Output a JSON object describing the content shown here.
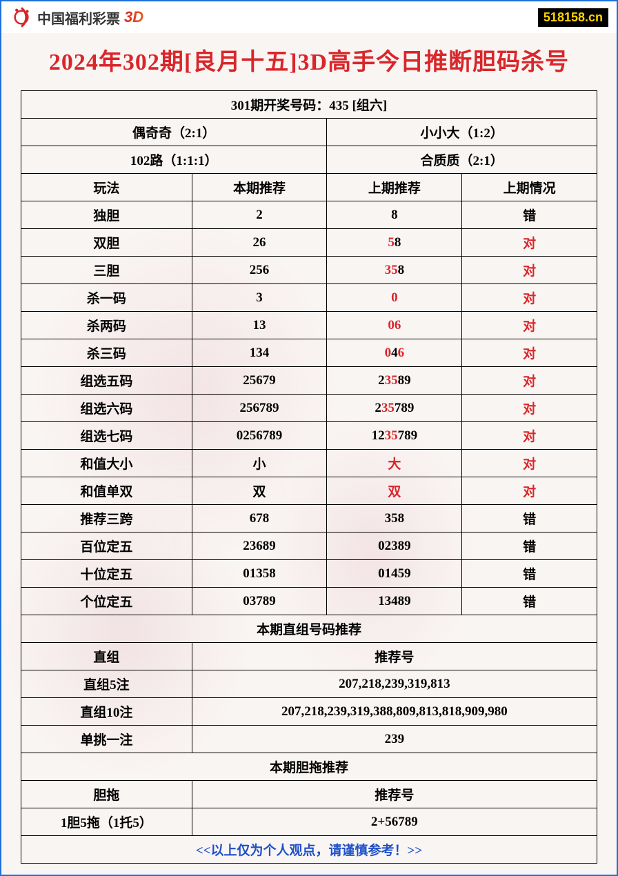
{
  "header": {
    "logo_text": "中国福利彩票",
    "logo_3d": "3D",
    "website": "518158.cn"
  },
  "title": "2024年302期[良月十五]3D高手今日推断胆码杀号",
  "table": {
    "winning_header": "301期开奖号码：435 [组六]",
    "summary_row1": {
      "left": "偶奇奇（2:1）",
      "right": "小小大（1:2）"
    },
    "summary_row2": {
      "left": "102路（1:1:1）",
      "right": "合质质（2:1）"
    },
    "columns": {
      "c1": "玩法",
      "c2": "本期推荐",
      "c3": "上期推荐",
      "c4": "上期情况"
    },
    "rows": [
      {
        "name": "独胆",
        "current": "2",
        "prev": [
          {
            "t": "8",
            "r": false
          }
        ],
        "result": "错",
        "result_red": false
      },
      {
        "name": "双胆",
        "current": "26",
        "prev": [
          {
            "t": "5",
            "r": true
          },
          {
            "t": "8",
            "r": false
          }
        ],
        "result": "对",
        "result_red": true
      },
      {
        "name": "三胆",
        "current": "256",
        "prev": [
          {
            "t": "35",
            "r": true
          },
          {
            "t": "8",
            "r": false
          }
        ],
        "result": "对",
        "result_red": true
      },
      {
        "name": "杀一码",
        "current": "3",
        "prev": [
          {
            "t": "0",
            "r": true
          }
        ],
        "result": "对",
        "result_red": true
      },
      {
        "name": "杀两码",
        "current": "13",
        "prev": [
          {
            "t": "06",
            "r": true
          }
        ],
        "result": "对",
        "result_red": true
      },
      {
        "name": "杀三码",
        "current": "134",
        "prev": [
          {
            "t": "0",
            "r": true
          },
          {
            "t": "4",
            "r": false
          },
          {
            "t": "6",
            "r": true
          }
        ],
        "result": "对",
        "result_red": true
      },
      {
        "name": "组选五码",
        "current": "25679",
        "prev": [
          {
            "t": "2",
            "r": false
          },
          {
            "t": "35",
            "r": true
          },
          {
            "t": "89",
            "r": false
          }
        ],
        "result": "对",
        "result_red": true
      },
      {
        "name": "组选六码",
        "current": "256789",
        "prev": [
          {
            "t": "2",
            "r": false
          },
          {
            "t": "35",
            "r": true
          },
          {
            "t": "789",
            "r": false
          }
        ],
        "result": "对",
        "result_red": true
      },
      {
        "name": "组选七码",
        "current": "0256789",
        "prev": [
          {
            "t": "12",
            "r": false
          },
          {
            "t": "35",
            "r": true
          },
          {
            "t": "789",
            "r": false
          }
        ],
        "result": "对",
        "result_red": true
      },
      {
        "name": "和值大小",
        "current": "小",
        "prev": [
          {
            "t": "大",
            "r": true
          }
        ],
        "result": "对",
        "result_red": true
      },
      {
        "name": "和值单双",
        "current": "双",
        "prev": [
          {
            "t": "双",
            "r": true
          }
        ],
        "result": "对",
        "result_red": true
      },
      {
        "name": "推荐三跨",
        "current": "678",
        "prev": [
          {
            "t": "358",
            "r": false
          }
        ],
        "result": "错",
        "result_red": false
      },
      {
        "name": "百位定五",
        "current": "23689",
        "prev": [
          {
            "t": "02389",
            "r": false
          }
        ],
        "result": "错",
        "result_red": false
      },
      {
        "name": "十位定五",
        "current": "01358",
        "prev": [
          {
            "t": "01459",
            "r": false
          }
        ],
        "result": "错",
        "result_red": false
      },
      {
        "name": "个位定五",
        "current": "03789",
        "prev": [
          {
            "t": "13489",
            "r": false
          }
        ],
        "result": "错",
        "result_red": false
      }
    ],
    "section2_header": "本期直组号码推荐",
    "section2_cols": {
      "c1": "直组",
      "c2": "推荐号"
    },
    "section2_rows": [
      {
        "name": "直组5注",
        "value": "207,218,239,319,813"
      },
      {
        "name": "直组10注",
        "value": "207,218,239,319,388,809,813,818,909,980"
      },
      {
        "name": "单挑一注",
        "value": "239"
      }
    ],
    "section3_header": "本期胆拖推荐",
    "section3_cols": {
      "c1": "胆拖",
      "c2": "推荐号"
    },
    "section3_rows": [
      {
        "name": "1胆5拖（1托5）",
        "value": "2+56789"
      }
    ],
    "footer": "<<以上仅为个人观点，请谨慎参考！>>"
  },
  "colors": {
    "border": "#1e6fd9",
    "title": "#d9262a",
    "red": "#d9262a",
    "footer_blue": "#1e50c9",
    "badge_bg": "#000000",
    "badge_fg": "#ffd400"
  }
}
